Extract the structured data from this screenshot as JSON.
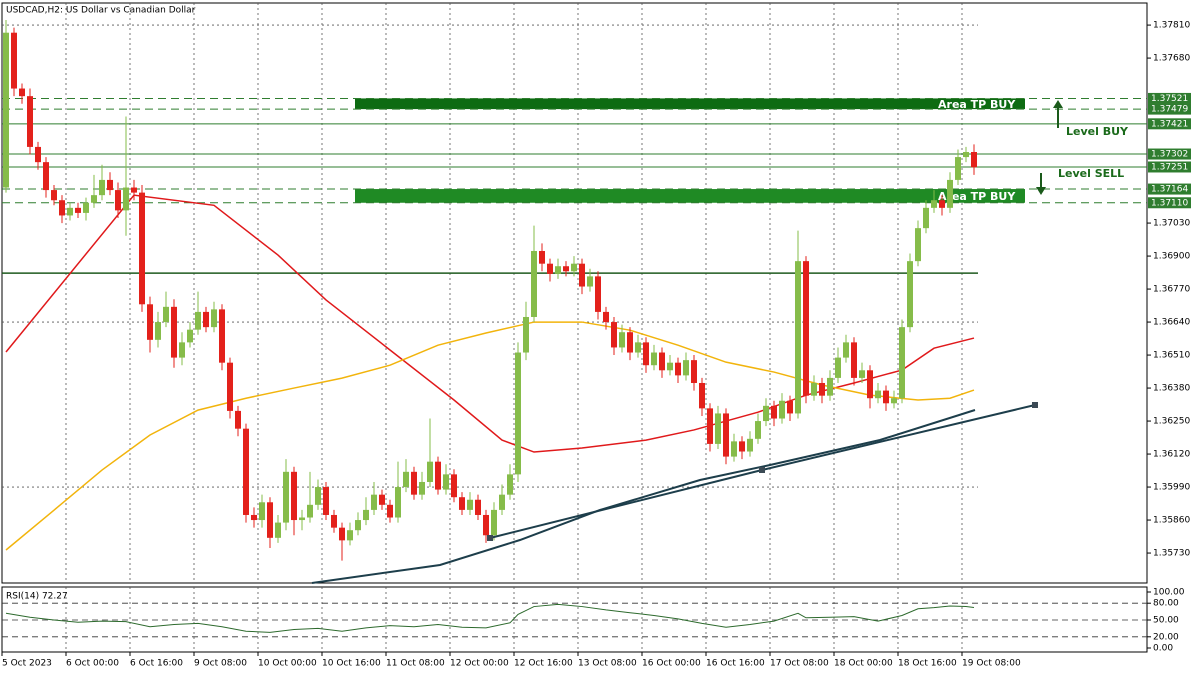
{
  "chart_data": {
    "type": "candlestick",
    "title": "USDCAD,H2:  US Dollar vs Canadian Dollar",
    "categories": [
      "5 Oct 2023",
      null,
      null,
      null,
      null,
      null,
      null,
      null,
      "6 Oct 00:00",
      null,
      null,
      null,
      null,
      null,
      null,
      null,
      "6 Oct 16:00",
      null,
      null,
      null,
      null,
      null,
      null,
      null,
      "9 Oct 08:00",
      null,
      null,
      null,
      null,
      null,
      null,
      null,
      "10 Oct 00:00",
      null,
      null,
      null,
      null,
      null,
      null,
      null,
      "10 Oct 16:00",
      null,
      null,
      null,
      null,
      null,
      null,
      null,
      "11 Oct 08:00",
      null,
      null,
      null,
      null,
      null,
      null,
      null,
      "12 Oct 00:00",
      null,
      null,
      null,
      null,
      null,
      null,
      null,
      "12 Oct 16:00",
      null,
      null,
      null,
      null,
      null,
      null,
      null,
      "13 Oct 08:00",
      null,
      null,
      null,
      null,
      null,
      null,
      null,
      "16 Oct 00:00",
      null,
      null,
      null,
      null,
      null,
      null,
      null,
      "16 Oct 16:00",
      null,
      null,
      null,
      null,
      null,
      null,
      null,
      "17 Oct 08:00",
      null,
      null,
      null,
      null,
      null,
      null,
      null,
      "18 Oct 00:00",
      null,
      null,
      null,
      null,
      null,
      null,
      null,
      "18 Oct 16:00",
      null,
      null,
      null,
      null,
      null,
      null,
      null,
      "19 Oct 08:00",
      null
    ],
    "open": [
      1.3717,
      1.3778,
      1.3756,
      1.3753,
      1.3733,
      1.3727,
      1.3716,
      1.3712,
      1.3706,
      1.3709,
      1.3707,
      1.3711,
      1.3714,
      1.372,
      1.3716,
      1.3708,
      1.3717,
      1.3715,
      1.3671,
      1.3657,
      1.3664,
      1.367,
      1.365,
      1.3656,
      1.3661,
      1.3668,
      1.3662,
      1.3669,
      1.3648,
      1.3629,
      1.3622,
      1.3588,
      1.3586,
      1.3593,
      1.3579,
      1.3585,
      1.3605,
      1.3586,
      1.3587,
      1.3592,
      1.3599,
      1.3588,
      1.3583,
      1.3578,
      1.3582,
      1.3586,
      1.359,
      1.3596,
      1.3592,
      1.3587,
      1.3599,
      1.3605,
      1.3596,
      1.3601,
      1.3609,
      1.3598,
      1.3604,
      1.3595,
      1.359,
      1.3594,
      1.3588,
      1.358,
      1.359,
      1.3596,
      1.3604,
      1.3652,
      1.3666,
      1.3692,
      1.3687,
      1.3683,
      1.3686,
      1.3684,
      1.3687,
      1.3678,
      1.3682,
      1.3668,
      1.3664,
      1.3654,
      1.366,
      1.3652,
      1.3656,
      1.3647,
      1.3652,
      1.3645,
      1.3648,
      1.3643,
      1.3649,
      1.364,
      1.363,
      1.3616,
      1.3628,
      1.3611,
      1.3617,
      1.3613,
      1.3618,
      1.3625,
      1.3631,
      1.3626,
      1.3633,
      1.3628,
      1.3688,
      1.3635,
      1.364,
      1.3635,
      1.3642,
      1.365,
      1.3656,
      1.3642,
      1.3645,
      1.3634,
      1.3637,
      1.3632,
      1.3634,
      1.3662,
      1.3688,
      1.3701,
      1.3709,
      1.3712,
      1.3709,
      1.372,
      1.3729,
      1.3731
    ],
    "high": [
      1.3783,
      1.378,
      1.3758,
      1.3756,
      1.3735,
      1.3729,
      1.3718,
      1.3714,
      1.3711,
      1.3711,
      1.3713,
      1.3722,
      1.3726,
      1.3723,
      1.3719,
      1.3745,
      1.372,
      1.3718,
      1.3674,
      1.3668,
      1.3676,
      1.3673,
      1.366,
      1.3664,
      1.3676,
      1.367,
      1.3672,
      1.3671,
      1.365,
      1.3631,
      1.3624,
      1.3591,
      1.3596,
      1.3595,
      1.3588,
      1.361,
      1.3607,
      1.359,
      1.3605,
      1.3602,
      1.3601,
      1.359,
      1.3585,
      1.3585,
      1.3589,
      1.3595,
      1.3601,
      1.3598,
      1.3594,
      1.3609,
      1.361,
      1.3607,
      1.3605,
      1.3626,
      1.3611,
      1.3608,
      1.3606,
      1.3597,
      1.3597,
      1.3596,
      1.359,
      1.3593,
      1.36,
      1.3608,
      1.3656,
      1.3672,
      1.3702,
      1.3695,
      1.3689,
      1.3689,
      1.3688,
      1.369,
      1.3689,
      1.3685,
      1.3684,
      1.367,
      1.3666,
      1.3663,
      1.3662,
      1.3659,
      1.3658,
      1.3655,
      1.3654,
      1.3651,
      1.365,
      1.3652,
      1.3651,
      1.3642,
      1.3632,
      1.3631,
      1.363,
      1.362,
      1.3619,
      1.3621,
      1.3628,
      1.3634,
      1.3633,
      1.3636,
      1.3635,
      1.37,
      1.369,
      1.3643,
      1.3642,
      1.3645,
      1.3654,
      1.3659,
      1.3658,
      1.3648,
      1.3647,
      1.364,
      1.3639,
      1.3637,
      1.3665,
      1.3691,
      1.3704,
      1.3712,
      1.3716,
      1.3714,
      1.3723,
      1.3732,
      1.3733,
      1.3734
    ],
    "low": [
      1.3715,
      1.3753,
      1.375,
      1.373,
      1.3724,
      1.3713,
      1.371,
      1.3703,
      1.3704,
      1.3705,
      1.3704,
      1.3709,
      1.3712,
      1.3714,
      1.3705,
      1.3698,
      1.3712,
      1.3668,
      1.3652,
      1.3654,
      1.3662,
      1.3646,
      1.3647,
      1.3654,
      1.3659,
      1.366,
      1.366,
      1.3645,
      1.3626,
      1.3619,
      1.3585,
      1.3583,
      1.3583,
      1.3575,
      1.3577,
      1.3582,
      1.358,
      1.3582,
      1.3585,
      1.359,
      1.3586,
      1.3581,
      1.357,
      1.3576,
      1.358,
      1.3584,
      1.3588,
      1.359,
      1.3585,
      1.3585,
      1.3597,
      1.3594,
      1.3594,
      1.3599,
      1.3596,
      1.3596,
      1.3593,
      1.3588,
      1.3588,
      1.3586,
      1.3577,
      1.3578,
      1.3588,
      1.3594,
      1.3601,
      1.3649,
      1.3664,
      1.3684,
      1.368,
      1.3681,
      1.3682,
      1.3682,
      1.3675,
      1.3676,
      1.3665,
      1.3661,
      1.3651,
      1.3652,
      1.3649,
      1.365,
      1.3644,
      1.3645,
      1.3642,
      1.3643,
      1.364,
      1.3641,
      1.3637,
      1.3627,
      1.3613,
      1.3614,
      1.3608,
      1.3609,
      1.361,
      1.3611,
      1.3616,
      1.3623,
      1.3623,
      1.3624,
      1.3625,
      1.3626,
      1.3632,
      1.3633,
      1.3632,
      1.3633,
      1.364,
      1.3648,
      1.3639,
      1.364,
      1.363,
      1.3632,
      1.3629,
      1.363,
      1.3632,
      1.366,
      1.3686,
      1.3699,
      1.3707,
      1.3706,
      1.3707,
      1.3718,
      1.3727,
      1.3722
    ],
    "close": [
      1.3778,
      1.3756,
      1.3753,
      1.3733,
      1.3727,
      1.3716,
      1.3712,
      1.3706,
      1.3709,
      1.3707,
      1.3711,
      1.3714,
      1.372,
      1.3716,
      1.3708,
      1.3717,
      1.3715,
      1.3671,
      1.3657,
      1.3664,
      1.367,
      1.365,
      1.3656,
      1.3661,
      1.3668,
      1.3662,
      1.3669,
      1.3648,
      1.3629,
      1.3622,
      1.3588,
      1.3586,
      1.3593,
      1.3579,
      1.3585,
      1.3605,
      1.3586,
      1.3587,
      1.3592,
      1.3599,
      1.3588,
      1.3583,
      1.3578,
      1.3582,
      1.3586,
      1.359,
      1.3596,
      1.3592,
      1.3587,
      1.3599,
      1.3605,
      1.3596,
      1.3601,
      1.3609,
      1.3598,
      1.3604,
      1.3595,
      1.359,
      1.3594,
      1.3588,
      1.358,
      1.359,
      1.3596,
      1.3604,
      1.3652,
      1.3666,
      1.3692,
      1.3687,
      1.3683,
      1.3686,
      1.3684,
      1.3687,
      1.3678,
      1.3682,
      1.3668,
      1.3664,
      1.3654,
      1.366,
      1.3652,
      1.3656,
      1.3647,
      1.3652,
      1.3645,
      1.3648,
      1.3643,
      1.3649,
      1.364,
      1.363,
      1.3616,
      1.3628,
      1.3611,
      1.3617,
      1.3613,
      1.3618,
      1.3625,
      1.3631,
      1.3626,
      1.3633,
      1.3628,
      1.3688,
      1.3635,
      1.364,
      1.3635,
      1.3642,
      1.365,
      1.3656,
      1.3642,
      1.3645,
      1.3634,
      1.3637,
      1.3632,
      1.3634,
      1.3662,
      1.3688,
      1.3701,
      1.3709,
      1.3712,
      1.3709,
      1.372,
      1.3729,
      1.3731,
      1.3725
    ],
    "up_color": "#86bc4a",
    "down_color": "#e3211b",
    "ylim": [
      1.35612,
      1.37897
    ],
    "yticks": [
      {
        "value": 1.3781,
        "label": "1.37810"
      },
      {
        "value": 1.3768,
        "label": "1.37680"
      },
      {
        "value": 1.3703,
        "label": "1.37030"
      },
      {
        "value": 1.369,
        "label": "1.36900"
      },
      {
        "value": 1.3677,
        "label": "1.36770"
      },
      {
        "value": 1.3664,
        "label": "1.36640"
      },
      {
        "value": 1.3651,
        "label": "1.36510"
      },
      {
        "value": 1.3638,
        "label": "1.36380"
      },
      {
        "value": 1.3625,
        "label": "1.36250"
      },
      {
        "value": 1.3612,
        "label": "1.36120"
      },
      {
        "value": 1.3599,
        "label": "1.35990"
      },
      {
        "value": 1.3586,
        "label": "1.35860"
      },
      {
        "value": 1.3573,
        "label": "1.35730"
      }
    ],
    "grid": true,
    "overlays": [
      {
        "color": "#e0191b",
        "x": [
          0,
          16,
          26,
          34,
          40,
          48,
          56,
          62,
          66,
          72,
          80,
          86,
          94,
          100,
          106,
          112,
          116,
          121
        ],
        "values": [
          1.36522,
          1.3714,
          1.371,
          1.36904,
          1.36727,
          1.3653,
          1.36333,
          1.36175,
          1.36128,
          1.36144,
          1.36175,
          1.36215,
          1.36285,
          1.36352,
          1.364,
          1.36451,
          1.36537,
          1.36577
        ]
      },
      {
        "color": "#f2b40c",
        "x": [
          0,
          6,
          12,
          18,
          24,
          30,
          36,
          42,
          48,
          54,
          60,
          66,
          72,
          78,
          84,
          90,
          96,
          102,
          108,
          114,
          118,
          121
        ],
        "values": [
          1.35742,
          1.35899,
          1.36057,
          1.36195,
          1.36293,
          1.3634,
          1.3638,
          1.36419,
          1.3647,
          1.36549,
          1.36597,
          1.3664,
          1.3664,
          1.36608,
          1.36549,
          1.36482,
          1.36443,
          1.36392,
          1.36352,
          1.36333,
          1.3634,
          1.36372
        ]
      }
    ],
    "levels": [
      {
        "value": 1.37521,
        "dashed": true,
        "color": "#2f7d2f"
      },
      {
        "value": 1.37479,
        "dashed": true,
        "color": "#2f7d2f"
      },
      {
        "value": 1.37421,
        "dashed": false,
        "color": "#2f7d2f"
      },
      {
        "value": 1.37302,
        "dashed": false,
        "color": "#2f7d2f"
      },
      {
        "value": 1.37251,
        "dashed": false,
        "color": "#2f7d2f"
      },
      {
        "value": 1.37164,
        "dashed": true,
        "color": "#2f7d2f"
      },
      {
        "value": 1.3711,
        "label": "1.37110",
        "dashed": true,
        "color": "#2f7d2f"
      }
    ],
    "hline": {
      "value": 1.36833,
      "color": "#1e5a1e"
    },
    "zones": [
      {
        "label": "Area TP BUY",
        "high": 1.37521,
        "low": 1.37479,
        "color": "#0d6b12"
      },
      {
        "label": "Area TP BUY",
        "high": 1.37164,
        "low": 1.3711,
        "color": "#1f8a24"
      }
    ],
    "annotations": [
      "Level BUY",
      "Level SELL"
    ],
    "rsi": {
      "title": "RSI(14) 72.27",
      "color": "#2d6a2d",
      "ylim": [
        0,
        100
      ],
      "yticks": [
        {
          "value": 100,
          "label": "100.00"
        },
        {
          "value": 80,
          "label": "80.00"
        },
        {
          "value": 50,
          "label": "50.00"
        },
        {
          "value": 20,
          "label": "20.00"
        },
        {
          "value": 0,
          "label": "0.00"
        }
      ],
      "x": [
        0,
        3,
        6,
        9,
        12,
        15,
        18,
        21,
        24,
        27,
        30,
        33,
        36,
        39,
        42,
        45,
        48,
        51,
        54,
        57,
        60,
        63,
        64,
        66,
        69,
        72,
        75,
        78,
        81,
        84,
        87,
        90,
        93,
        96,
        99,
        100,
        103,
        106,
        109,
        112,
        114,
        116,
        118,
        120,
        121
      ],
      "values": [
        62,
        55,
        50,
        46,
        48,
        47,
        38,
        42,
        44,
        38,
        30,
        28,
        33,
        35,
        30,
        36,
        40,
        38,
        42,
        37,
        36,
        45,
        60,
        74,
        78,
        74,
        68,
        63,
        58,
        52,
        44,
        37,
        42,
        48,
        62,
        54,
        55,
        56,
        48,
        58,
        70,
        72,
        75,
        74,
        72.27
      ]
    }
  }
}
